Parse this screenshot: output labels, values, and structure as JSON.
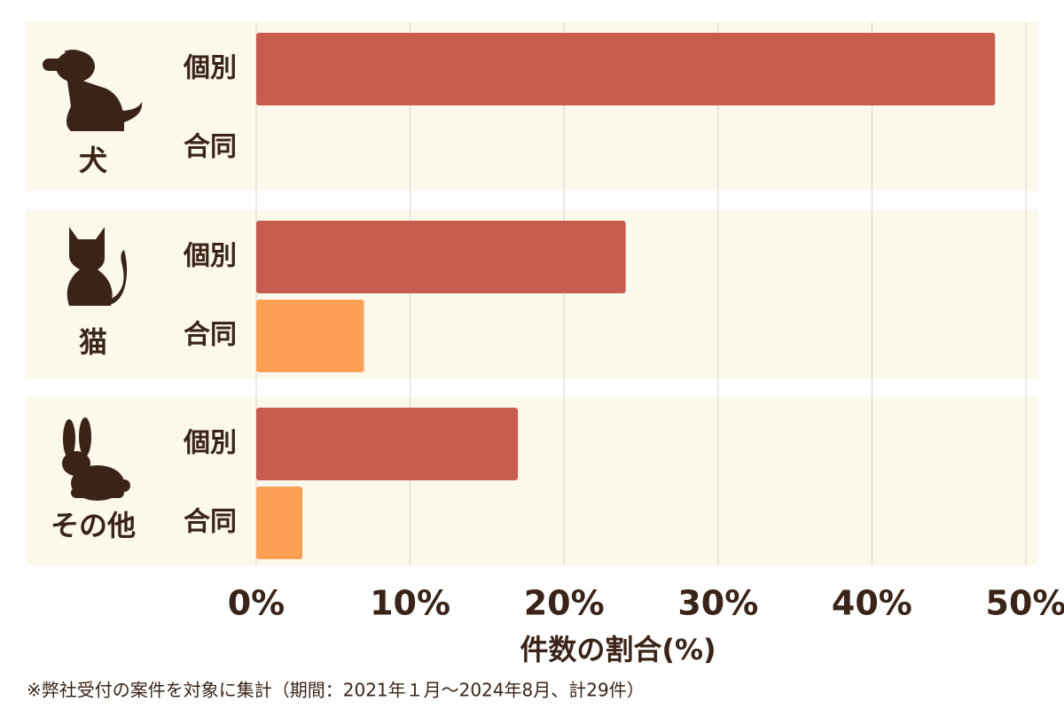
{
  "chart_data": {
    "type": "bar",
    "orientation": "horizontal",
    "categories": [
      "犬",
      "猫",
      "その他"
    ],
    "series": [
      {
        "name": "個別",
        "color": "#c65d4f",
        "values": [
          48,
          24,
          17
        ]
      },
      {
        "name": "合同",
        "color": "#fb9f55",
        "values": [
          0,
          7,
          3
        ]
      }
    ],
    "xlim": [
      0,
      50
    ],
    "xticks": [
      {
        "value": 0,
        "label": "0%"
      },
      {
        "value": 10,
        "label": "10%"
      },
      {
        "value": 20,
        "label": "20%"
      },
      {
        "value": 30,
        "label": "30%"
      },
      {
        "value": 40,
        "label": "40%"
      },
      {
        "value": 50,
        "label": "50%"
      }
    ],
    "xlabel": "件数の割合(%)",
    "note": "※弊社受付の案件を対象に集計（期間：2021年１月～2024年8月、計29件）",
    "grid": true
  }
}
